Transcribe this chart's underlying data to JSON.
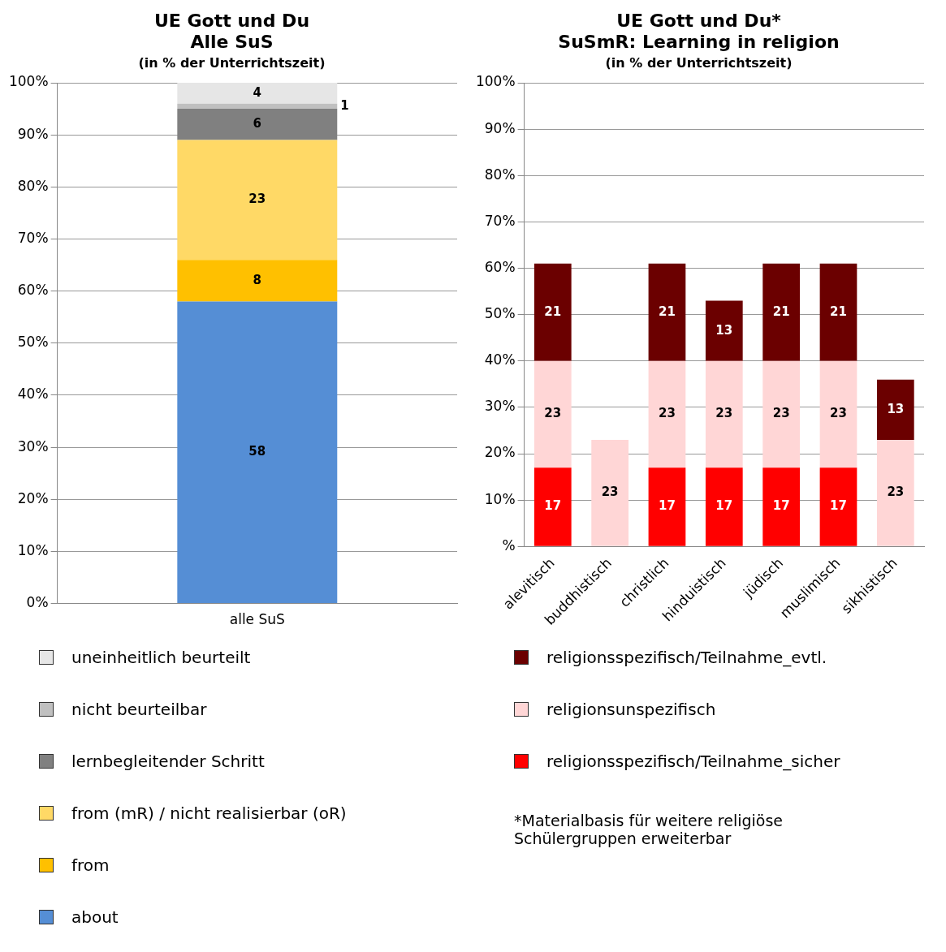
{
  "chart_data": [
    {
      "type": "bar",
      "title": "UE Gott und Du\nAlle SuS",
      "subtitle": "(in % der Unterrichtszeit)",
      "categories": [
        "alle SuS"
      ],
      "stacked": true,
      "data_labels": true,
      "grid": "y",
      "legend": "bottom",
      "ylim": [
        0,
        100
      ],
      "yticks": [
        {
          "value": 0,
          "label": "0%"
        },
        {
          "value": 10,
          "label": "10%"
        },
        {
          "value": 20,
          "label": "20%"
        },
        {
          "value": 30,
          "label": "30%"
        },
        {
          "value": 40,
          "label": "40%"
        },
        {
          "value": 50,
          "label": "50%"
        },
        {
          "value": 60,
          "label": "60%"
        },
        {
          "value": 70,
          "label": "70%"
        },
        {
          "value": 80,
          "label": "80%"
        },
        {
          "value": 90,
          "label": "90%"
        },
        {
          "value": 100,
          "label": "100%"
        }
      ],
      "series": [
        {
          "name": "about",
          "color": "#558ed5",
          "values": [
            58
          ]
        },
        {
          "name": "from",
          "color": "#ffc000",
          "values": [
            8
          ]
        },
        {
          "name": "from (mR) / nicht realisierbar (oR)",
          "color": "#ffd966",
          "values": [
            23
          ]
        },
        {
          "name": "lernbegleitender Schritt",
          "color": "#808080",
          "values": [
            6
          ]
        },
        {
          "name": "nicht beurteilbar",
          "color": "#c0c0c0",
          "values": [
            1
          ]
        },
        {
          "name": "uneinheitlich beurteilt",
          "color": "#e6e6e6",
          "values": [
            4
          ]
        }
      ]
    },
    {
      "type": "bar",
      "title": "UE Gott und Du*\nSuSmR: Learning in religion",
      "subtitle": "(in % der Unterrichtszeit)",
      "categories": [
        "alevitisch",
        "buddhistisch",
        "christlich",
        "hinduistisch",
        "jüdisch",
        "muslimisch",
        "sikhistisch"
      ],
      "stacked": true,
      "data_labels": true,
      "grid": "y",
      "legend": "bottom",
      "ylim": [
        0,
        100
      ],
      "yticks": [
        {
          "value": 0,
          "label": "%"
        },
        {
          "value": 10,
          "label": "10%"
        },
        {
          "value": 20,
          "label": "20%"
        },
        {
          "value": 30,
          "label": "30%"
        },
        {
          "value": 40,
          "label": "40%"
        },
        {
          "value": 50,
          "label": "50%"
        },
        {
          "value": 60,
          "label": "60%"
        },
        {
          "value": 70,
          "label": "70%"
        },
        {
          "value": 80,
          "label": "80%"
        },
        {
          "value": 90,
          "label": "90%"
        },
        {
          "value": 100,
          "label": "100%"
        }
      ],
      "annotations": [
        "*Materialbasis für weitere religiöse Schülergruppen erweiterbar"
      ],
      "series": [
        {
          "name": "religionsspezifisch/Teilnahme_sicher",
          "color": "#ff0000",
          "values": [
            17,
            null,
            17,
            17,
            17,
            17,
            null
          ]
        },
        {
          "name": "religionsunspezifisch",
          "color": "#ffd6d6",
          "values": [
            23,
            23,
            23,
            23,
            23,
            23,
            23
          ]
        },
        {
          "name": "religionsspezifisch/Teilnahme_evtl.",
          "color": "#6b0000",
          "values": [
            21,
            null,
            21,
            13,
            21,
            21,
            13
          ]
        }
      ]
    }
  ]
}
